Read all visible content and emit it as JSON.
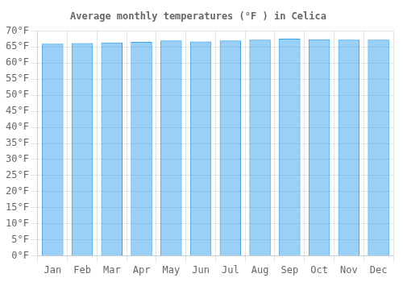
{
  "chart_data": {
    "type": "bar",
    "title": "Average monthly temperatures (°F ) in Celica",
    "categories": [
      "Jan",
      "Feb",
      "Mar",
      "Apr",
      "May",
      "Jun",
      "Jul",
      "Aug",
      "Sep",
      "Oct",
      "Nov",
      "Dec"
    ],
    "values": [
      66.0,
      66.2,
      66.4,
      66.6,
      67.0,
      66.7,
      67.0,
      67.3,
      67.6,
      67.4,
      67.3,
      67.3
    ],
    "ylim": [
      0,
      70
    ],
    "yticks": [
      {
        "value": 0,
        "label": "0°F"
      },
      {
        "value": 5,
        "label": "5°F"
      },
      {
        "value": 10,
        "label": "10°F"
      },
      {
        "value": 15,
        "label": "15°F"
      },
      {
        "value": 20,
        "label": "20°F"
      },
      {
        "value": 25,
        "label": "25°F"
      },
      {
        "value": 30,
        "label": "30°F"
      },
      {
        "value": 35,
        "label": "35°F"
      },
      {
        "value": 40,
        "label": "40°F"
      },
      {
        "value": 45,
        "label": "45°F"
      },
      {
        "value": 50,
        "label": "50°F"
      },
      {
        "value": 55,
        "label": "55°F"
      },
      {
        "value": 60,
        "label": "60°F"
      },
      {
        "value": 65,
        "label": "65°F"
      },
      {
        "value": 70,
        "label": "70°F"
      }
    ],
    "grid": true
  }
}
